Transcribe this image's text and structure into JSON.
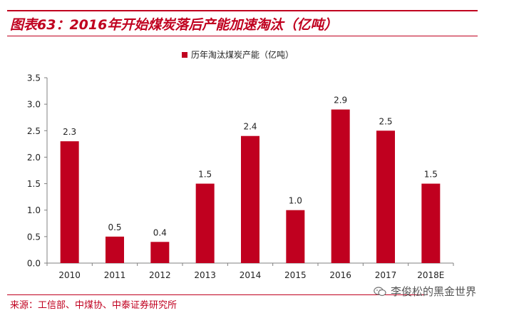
{
  "header": {
    "title": "图表63：2016年开始煤炭落后产能加速淘汰（亿吨）"
  },
  "footer": {
    "source": "来源：工信部、中煤协、中泰证券研究所",
    "watermark": "李俊松的黑金世界"
  },
  "icons": {
    "watermark_icon": "wechat-icon"
  },
  "colors": {
    "brand": "#c0001f",
    "bar": "#c0001f"
  },
  "chart_data": {
    "type": "bar",
    "categories": [
      "2010",
      "2011",
      "2012",
      "2013",
      "2014",
      "2015",
      "2016",
      "2017",
      "2018E"
    ],
    "series": [
      {
        "name": "历年淘汰煤炭产能（亿吨）",
        "values": [
          2.3,
          0.5,
          0.4,
          1.5,
          2.4,
          1.0,
          2.9,
          2.5,
          1.5
        ]
      }
    ],
    "yticks": [
      "0.0",
      "0.5",
      "1.0",
      "1.5",
      "2.0",
      "2.5",
      "3.0",
      "3.5"
    ],
    "ylim": [
      0,
      3.5
    ],
    "legend_position": "top",
    "grid": false,
    "data_labels": true
  }
}
